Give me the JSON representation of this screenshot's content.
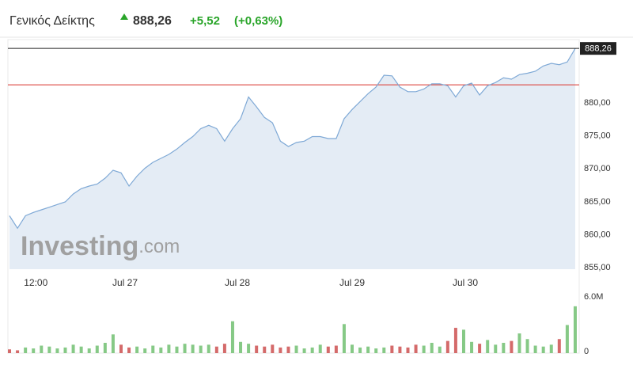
{
  "header": {
    "title": "Γενικός Δείκτης",
    "price": "888,26",
    "change": "+5,52",
    "change_pct": "(+0,63%)"
  },
  "watermark": {
    "brand": "Investing",
    "suffix": ".com"
  },
  "chart_data": [
    {
      "type": "area",
      "color": "#7fa9d6",
      "fill": "#e4ecf5",
      "x": [
        0,
        1,
        2,
        3,
        4,
        5,
        6,
        7,
        8,
        9,
        10,
        11,
        12,
        13,
        14,
        15,
        16,
        17,
        18,
        19,
        20,
        21,
        22,
        23,
        24,
        25,
        26,
        27,
        28,
        29,
        30,
        31,
        32,
        33,
        34,
        35,
        36,
        37,
        38,
        39,
        40,
        41,
        42,
        43,
        44,
        45,
        46,
        47,
        48,
        49,
        50,
        51,
        52,
        53,
        54,
        55,
        56,
        57,
        58,
        59,
        60,
        61,
        62,
        63,
        64,
        65,
        66,
        67,
        68,
        69,
        70,
        71
      ],
      "values": [
        862.9,
        861.0,
        862.9,
        863.4,
        863.8,
        864.2,
        864.6,
        865.0,
        866.2,
        867.0,
        867.4,
        867.7,
        868.6,
        869.8,
        869.4,
        867.4,
        868.9,
        870.1,
        871.0,
        871.6,
        872.2,
        873.0,
        874.0,
        874.9,
        876.1,
        876.6,
        876.1,
        874.2,
        876.1,
        877.6,
        880.9,
        879.4,
        877.8,
        877.0,
        874.2,
        873.4,
        874.0,
        874.2,
        874.9,
        874.9,
        874.6,
        874.6,
        877.6,
        879.0,
        880.2,
        881.4,
        882.4,
        884.2,
        884.1,
        882.4,
        881.7,
        881.7,
        882.1,
        882.9,
        882.9,
        882.6,
        880.9,
        882.6,
        883.0,
        881.2,
        882.6,
        883.1,
        883.8,
        883.6,
        884.3,
        884.5,
        884.8,
        885.6,
        886.0,
        885.8,
        886.2,
        888.26
      ],
      "last_value_label": "888,26",
      "previous_close": 882.74,
      "previous_close_color": "#d9332b",
      "xlim": [
        -0.2,
        71.5
      ],
      "xticks": [
        {
          "value": 3.3,
          "label": "12:00"
        },
        {
          "value": 14.5,
          "label": "Jul 27"
        },
        {
          "value": 28.6,
          "label": "Jul 28"
        },
        {
          "value": 43.0,
          "label": "Jul 29"
        },
        {
          "value": 57.2,
          "label": "Jul 30"
        }
      ],
      "ylim": [
        854.8,
        889.6
      ],
      "yticks": [
        {
          "value": 855,
          "label": "855,00"
        },
        {
          "value": 860,
          "label": "860,00"
        },
        {
          "value": 865,
          "label": "865,00"
        },
        {
          "value": 870,
          "label": "870,00"
        },
        {
          "value": 875,
          "label": "875,00"
        },
        {
          "value": 880,
          "label": "880,00"
        }
      ]
    },
    {
      "type": "bar",
      "x": [
        0,
        1,
        2,
        3,
        4,
        5,
        6,
        7,
        8,
        9,
        10,
        11,
        12,
        13,
        14,
        15,
        16,
        17,
        18,
        19,
        20,
        21,
        22,
        23,
        24,
        25,
        26,
        27,
        28,
        29,
        30,
        31,
        32,
        33,
        34,
        35,
        36,
        37,
        38,
        39,
        40,
        41,
        42,
        43,
        44,
        45,
        46,
        47,
        48,
        49,
        50,
        51,
        52,
        53,
        54,
        55,
        56,
        57,
        58,
        59,
        60,
        61,
        62,
        63,
        64,
        65,
        66,
        67,
        68,
        69,
        70,
        71
      ],
      "values": [
        400000,
        300000,
        600000,
        500000,
        800000,
        700000,
        500000,
        600000,
        900000,
        700000,
        500000,
        800000,
        1100000,
        2000000,
        900000,
        600000,
        700000,
        500000,
        800000,
        600000,
        900000,
        700000,
        1000000,
        900000,
        800000,
        900000,
        700000,
        1000000,
        3400000,
        1200000,
        1000000,
        800000,
        700000,
        900000,
        600000,
        700000,
        800000,
        500000,
        600000,
        900000,
        700000,
        800000,
        3100000,
        900000,
        600000,
        700000,
        500000,
        600000,
        800000,
        700000,
        600000,
        900000,
        800000,
        1100000,
        700000,
        1300000,
        2700000,
        2500000,
        1200000,
        1000000,
        1400000,
        900000,
        1100000,
        1300000,
        2100000,
        1500000,
        800000,
        700000,
        900000,
        1500000,
        3000000,
        5000000
      ],
      "colors": [
        "#d46a6a",
        "#d46a6a",
        "#86c986",
        "#86c986",
        "#86c986",
        "#86c986",
        "#86c986",
        "#86c986",
        "#86c986",
        "#86c986",
        "#86c986",
        "#86c986",
        "#86c986",
        "#86c986",
        "#d46a6a",
        "#d46a6a",
        "#86c986",
        "#86c986",
        "#86c986",
        "#86c986",
        "#86c986",
        "#86c986",
        "#86c986",
        "#86c986",
        "#86c986",
        "#86c986",
        "#d46a6a",
        "#d46a6a",
        "#86c986",
        "#86c986",
        "#86c986",
        "#d46a6a",
        "#d46a6a",
        "#d46a6a",
        "#d46a6a",
        "#d46a6a",
        "#86c986",
        "#86c986",
        "#86c986",
        "#86c986",
        "#d46a6a",
        "#d46a6a",
        "#86c986",
        "#86c986",
        "#86c986",
        "#86c986",
        "#86c986",
        "#86c986",
        "#d46a6a",
        "#d46a6a",
        "#d46a6a",
        "#d46a6a",
        "#86c986",
        "#86c986",
        "#86c986",
        "#d46a6a",
        "#d46a6a",
        "#86c986",
        "#86c986",
        "#d46a6a",
        "#86c986",
        "#86c986",
        "#86c986",
        "#d46a6a",
        "#86c986",
        "#86c986",
        "#86c986",
        "#86c986",
        "#86c986",
        "#d46a6a",
        "#86c986",
        "#86c986"
      ],
      "xlim": [
        -0.2,
        71.5
      ],
      "ylim": [
        0,
        6000000
      ],
      "yticks": [
        0,
        {
          "value": 6000000,
          "label": "6.0M"
        }
      ]
    }
  ]
}
